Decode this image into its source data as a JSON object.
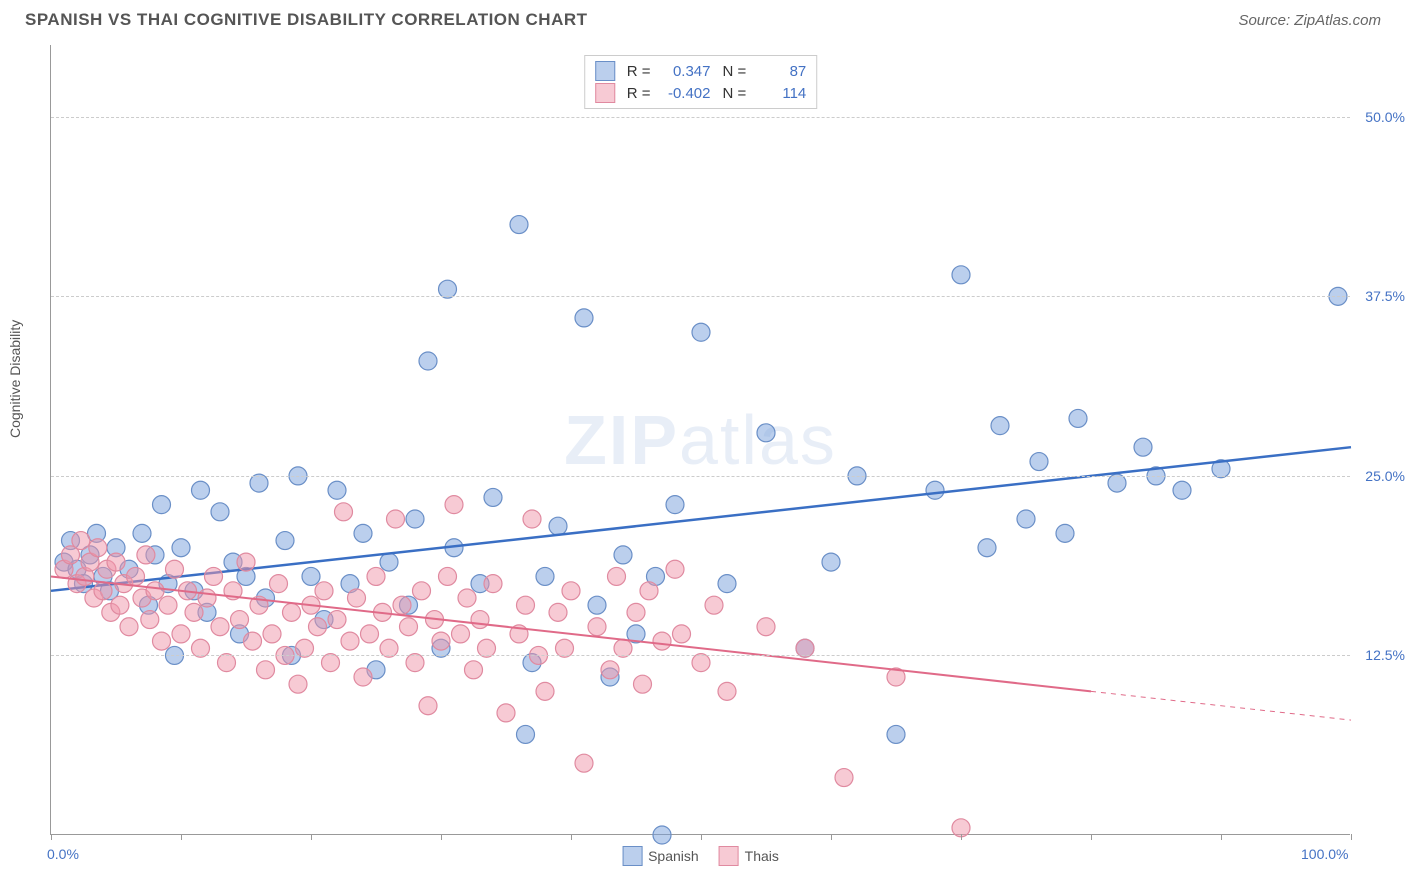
{
  "header": {
    "title": "SPANISH VS THAI COGNITIVE DISABILITY CORRELATION CHART",
    "source": "Source: ZipAtlas.com"
  },
  "watermark": {
    "bold": "ZIP",
    "light": "atlas"
  },
  "axes": {
    "ylabel": "Cognitive Disability",
    "xlim": [
      0,
      100
    ],
    "ylim": [
      0,
      55
    ],
    "x_ticks_pct": [
      0,
      10,
      20,
      30,
      40,
      50,
      60,
      70,
      80,
      90,
      100
    ],
    "x_tick_labels_shown": {
      "0": "0.0%",
      "100": "100.0%"
    },
    "y_gridlines": [
      12.5,
      25.0,
      37.5,
      50.0
    ],
    "y_tick_labels": [
      "12.5%",
      "25.0%",
      "37.5%",
      "50.0%"
    ],
    "grid_color": "#cccccc",
    "axis_color": "#999999",
    "tick_label_color": "#4472c4"
  },
  "series": [
    {
      "name": "Spanish",
      "color_fill": "rgba(120,160,220,0.5)",
      "color_stroke": "#6a8fc7",
      "marker_radius": 9,
      "R": "0.347",
      "N": "87",
      "trend": {
        "x1": 0,
        "y1": 17.0,
        "x2": 100,
        "y2": 27.0,
        "color": "#3a6fc4",
        "width": 2.5
      },
      "points": [
        [
          1,
          19
        ],
        [
          1.5,
          20.5
        ],
        [
          2,
          18.5
        ],
        [
          2.5,
          17.5
        ],
        [
          3,
          19.5
        ],
        [
          3.5,
          21
        ],
        [
          4,
          18
        ],
        [
          4.5,
          17
        ],
        [
          5,
          20
        ],
        [
          6,
          18.5
        ],
        [
          7,
          21
        ],
        [
          7.5,
          16
        ],
        [
          8,
          19.5
        ],
        [
          8.5,
          23
        ],
        [
          9,
          17.5
        ],
        [
          9.5,
          12.5
        ],
        [
          10,
          20
        ],
        [
          11,
          17
        ],
        [
          11.5,
          24
        ],
        [
          12,
          15.5
        ],
        [
          13,
          22.5
        ],
        [
          14,
          19
        ],
        [
          14.5,
          14
        ],
        [
          15,
          18
        ],
        [
          16,
          24.5
        ],
        [
          16.5,
          16.5
        ],
        [
          18,
          20.5
        ],
        [
          18.5,
          12.5
        ],
        [
          19,
          25
        ],
        [
          20,
          18
        ],
        [
          21,
          15
        ],
        [
          22,
          24
        ],
        [
          23,
          17.5
        ],
        [
          24,
          21
        ],
        [
          25,
          11.5
        ],
        [
          26,
          19
        ],
        [
          27.5,
          16
        ],
        [
          28,
          22
        ],
        [
          29,
          33
        ],
        [
          30,
          13
        ],
        [
          30.5,
          38
        ],
        [
          31,
          20
        ],
        [
          33,
          17.5
        ],
        [
          34,
          23.5
        ],
        [
          36,
          42.5
        ],
        [
          36.5,
          7
        ],
        [
          37,
          12
        ],
        [
          38,
          18
        ],
        [
          39,
          21.5
        ],
        [
          41,
          36
        ],
        [
          42,
          16
        ],
        [
          43,
          11
        ],
        [
          44,
          19.5
        ],
        [
          45,
          14
        ],
        [
          46.5,
          18
        ],
        [
          47,
          0
        ],
        [
          48,
          23
        ],
        [
          50,
          35
        ],
        [
          52,
          17.5
        ],
        [
          55,
          28
        ],
        [
          58,
          13
        ],
        [
          60,
          19
        ],
        [
          62,
          25
        ],
        [
          65,
          7
        ],
        [
          68,
          24
        ],
        [
          70,
          39
        ],
        [
          72,
          20
        ],
        [
          73,
          28.5
        ],
        [
          75,
          22
        ],
        [
          76,
          26
        ],
        [
          78,
          21
        ],
        [
          79,
          29
        ],
        [
          82,
          24.5
        ],
        [
          84,
          27
        ],
        [
          85,
          25
        ],
        [
          87,
          24
        ],
        [
          90,
          25.5
        ],
        [
          99,
          37.5
        ]
      ]
    },
    {
      "name": "Thais",
      "color_fill": "rgba(240,150,170,0.5)",
      "color_stroke": "#e08aa0",
      "marker_radius": 9,
      "R": "-0.402",
      "N": "114",
      "trend": {
        "x1": 0,
        "y1": 18.0,
        "x2": 80,
        "y2": 10.0,
        "color": "#e06a88",
        "width": 2,
        "ext_x2": 100,
        "ext_y2": 8.0,
        "ext_dash": "5,5"
      },
      "points": [
        [
          1,
          18.5
        ],
        [
          1.5,
          19.5
        ],
        [
          2,
          17.5
        ],
        [
          2.3,
          20.5
        ],
        [
          2.6,
          18
        ],
        [
          3,
          19
        ],
        [
          3.3,
          16.5
        ],
        [
          3.6,
          20
        ],
        [
          4,
          17
        ],
        [
          4.3,
          18.5
        ],
        [
          4.6,
          15.5
        ],
        [
          5,
          19
        ],
        [
          5.3,
          16
        ],
        [
          5.6,
          17.5
        ],
        [
          6,
          14.5
        ],
        [
          6.5,
          18
        ],
        [
          7,
          16.5
        ],
        [
          7.3,
          19.5
        ],
        [
          7.6,
          15
        ],
        [
          8,
          17
        ],
        [
          8.5,
          13.5
        ],
        [
          9,
          16
        ],
        [
          9.5,
          18.5
        ],
        [
          10,
          14
        ],
        [
          10.5,
          17
        ],
        [
          11,
          15.5
        ],
        [
          11.5,
          13
        ],
        [
          12,
          16.5
        ],
        [
          12.5,
          18
        ],
        [
          13,
          14.5
        ],
        [
          13.5,
          12
        ],
        [
          14,
          17
        ],
        [
          14.5,
          15
        ],
        [
          15,
          19
        ],
        [
          15.5,
          13.5
        ],
        [
          16,
          16
        ],
        [
          16.5,
          11.5
        ],
        [
          17,
          14
        ],
        [
          17.5,
          17.5
        ],
        [
          18,
          12.5
        ],
        [
          18.5,
          15.5
        ],
        [
          19,
          10.5
        ],
        [
          19.5,
          13
        ],
        [
          20,
          16
        ],
        [
          20.5,
          14.5
        ],
        [
          21,
          17
        ],
        [
          21.5,
          12
        ],
        [
          22,
          15
        ],
        [
          22.5,
          22.5
        ],
        [
          23,
          13.5
        ],
        [
          23.5,
          16.5
        ],
        [
          24,
          11
        ],
        [
          24.5,
          14
        ],
        [
          25,
          18
        ],
        [
          25.5,
          15.5
        ],
        [
          26,
          13
        ],
        [
          26.5,
          22
        ],
        [
          27,
          16
        ],
        [
          27.5,
          14.5
        ],
        [
          28,
          12
        ],
        [
          28.5,
          17
        ],
        [
          29,
          9
        ],
        [
          29.5,
          15
        ],
        [
          30,
          13.5
        ],
        [
          30.5,
          18
        ],
        [
          31,
          23
        ],
        [
          31.5,
          14
        ],
        [
          32,
          16.5
        ],
        [
          32.5,
          11.5
        ],
        [
          33,
          15
        ],
        [
          33.5,
          13
        ],
        [
          34,
          17.5
        ],
        [
          35,
          8.5
        ],
        [
          36,
          14
        ],
        [
          36.5,
          16
        ],
        [
          37,
          22
        ],
        [
          37.5,
          12.5
        ],
        [
          38,
          10
        ],
        [
          39,
          15.5
        ],
        [
          39.5,
          13
        ],
        [
          40,
          17
        ],
        [
          41,
          5
        ],
        [
          42,
          14.5
        ],
        [
          43,
          11.5
        ],
        [
          43.5,
          18
        ],
        [
          44,
          13
        ],
        [
          45,
          15.5
        ],
        [
          45.5,
          10.5
        ],
        [
          46,
          17
        ],
        [
          47,
          13.5
        ],
        [
          48,
          18.5
        ],
        [
          48.5,
          14
        ],
        [
          50,
          12
        ],
        [
          51,
          16
        ],
        [
          52,
          10
        ],
        [
          55,
          14.5
        ],
        [
          58,
          13
        ],
        [
          61,
          4
        ],
        [
          65,
          11
        ],
        [
          70,
          0.5
        ]
      ]
    }
  ],
  "legend_top": {
    "rows": [
      {
        "swatch_fill": "rgba(120,160,220,0.5)",
        "swatch_stroke": "#6a8fc7",
        "R": "0.347",
        "N": "87"
      },
      {
        "swatch_fill": "rgba(240,150,170,0.5)",
        "swatch_stroke": "#e08aa0",
        "R": "-0.402",
        "N": "114"
      }
    ]
  },
  "legend_bottom": {
    "items": [
      {
        "swatch_fill": "rgba(120,160,220,0.5)",
        "swatch_stroke": "#6a8fc7",
        "label": "Spanish"
      },
      {
        "swatch_fill": "rgba(240,150,170,0.5)",
        "swatch_stroke": "#e08aa0",
        "label": "Thais"
      }
    ]
  }
}
